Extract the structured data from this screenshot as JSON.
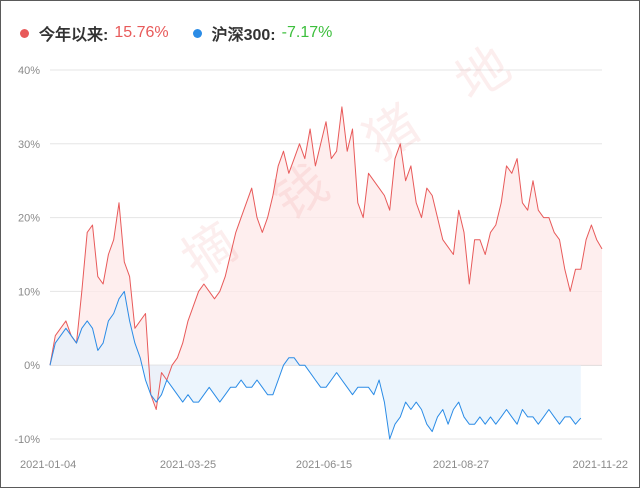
{
  "legend": {
    "items": [
      {
        "label": "今年以来:",
        "value": "15.76%",
        "color": "#e85a5a",
        "value_color": "#e85a5a"
      },
      {
        "label": "沪深300:",
        "value": "-7.17%",
        "color": "#2b8ce6",
        "value_color": "#3dbf3d"
      }
    ]
  },
  "watermark": "摘 钱 猪 地",
  "colors": {
    "fund_line": "#e85a5a",
    "fund_fill": "#fde8e8",
    "index_line": "#2b8ce6",
    "index_fill": "#e6f1fc",
    "grid": "#e5e5e5",
    "baseline": "#d0d0d0"
  },
  "chart_data": {
    "type": "area",
    "x_tick_labels": [
      "2021-01-04",
      "2021-03-25",
      "2021-06-15",
      "2021-08-27",
      "2021-11-22"
    ],
    "y_tick_labels": [
      "40%",
      "30%",
      "20%",
      "10%",
      "0%",
      "-10%"
    ],
    "y_ticks": [
      40,
      30,
      20,
      10,
      0,
      -10
    ],
    "ylim": [
      -10,
      40
    ],
    "grid": true,
    "legend_position": "top-left",
    "series": [
      {
        "name": "今年以来",
        "values": [
          0,
          4,
          5,
          6,
          4,
          3,
          10,
          18,
          19,
          12,
          11,
          15,
          17,
          22,
          14,
          12,
          5,
          6,
          7,
          -4,
          -6,
          -1,
          -2,
          0,
          1,
          3,
          6,
          8,
          10,
          11,
          10,
          9,
          10,
          12,
          15,
          18,
          20,
          22,
          24,
          20,
          18,
          20,
          23,
          27,
          29,
          26,
          28,
          30,
          28,
          32,
          27,
          30,
          33,
          28,
          29,
          35,
          29,
          32,
          22,
          20,
          26,
          25,
          24,
          23,
          21,
          28,
          30,
          25,
          27,
          22,
          20,
          24,
          23,
          20,
          17,
          16,
          15,
          21,
          18,
          11,
          17,
          17,
          15,
          18,
          19,
          22,
          27,
          26,
          28,
          22,
          21,
          25,
          21,
          20,
          20,
          18,
          17,
          13,
          10,
          13,
          13,
          17,
          19,
          17,
          15.76
        ]
      },
      {
        "name": "沪深300",
        "values": [
          0,
          3,
          4,
          5,
          4,
          3,
          5,
          6,
          5,
          2,
          3,
          6,
          7,
          9,
          10,
          6,
          3,
          1,
          -2,
          -4,
          -5,
          -4,
          -2,
          -3,
          -4,
          -5,
          -4,
          -5,
          -5,
          -4,
          -3,
          -4,
          -5,
          -4,
          -3,
          -3,
          -2,
          -3,
          -3,
          -2,
          -3,
          -4,
          -4,
          -2,
          0,
          1,
          1,
          0,
          0,
          -1,
          -2,
          -3,
          -3,
          -2,
          -1,
          -2,
          -3,
          -4,
          -3,
          -3,
          -3,
          -4,
          -2,
          -5,
          -10,
          -8,
          -7,
          -5,
          -6,
          -5,
          -6,
          -8,
          -9,
          -7,
          -6,
          -8,
          -6,
          -5,
          -7,
          -8,
          -8,
          -7,
          -8,
          -7,
          -8,
          -7,
          -6,
          -7,
          -8,
          -6,
          -7,
          -7,
          -8,
          -7,
          -6,
          -7,
          -8,
          -7,
          -7,
          -8,
          -7.17
        ]
      }
    ]
  }
}
